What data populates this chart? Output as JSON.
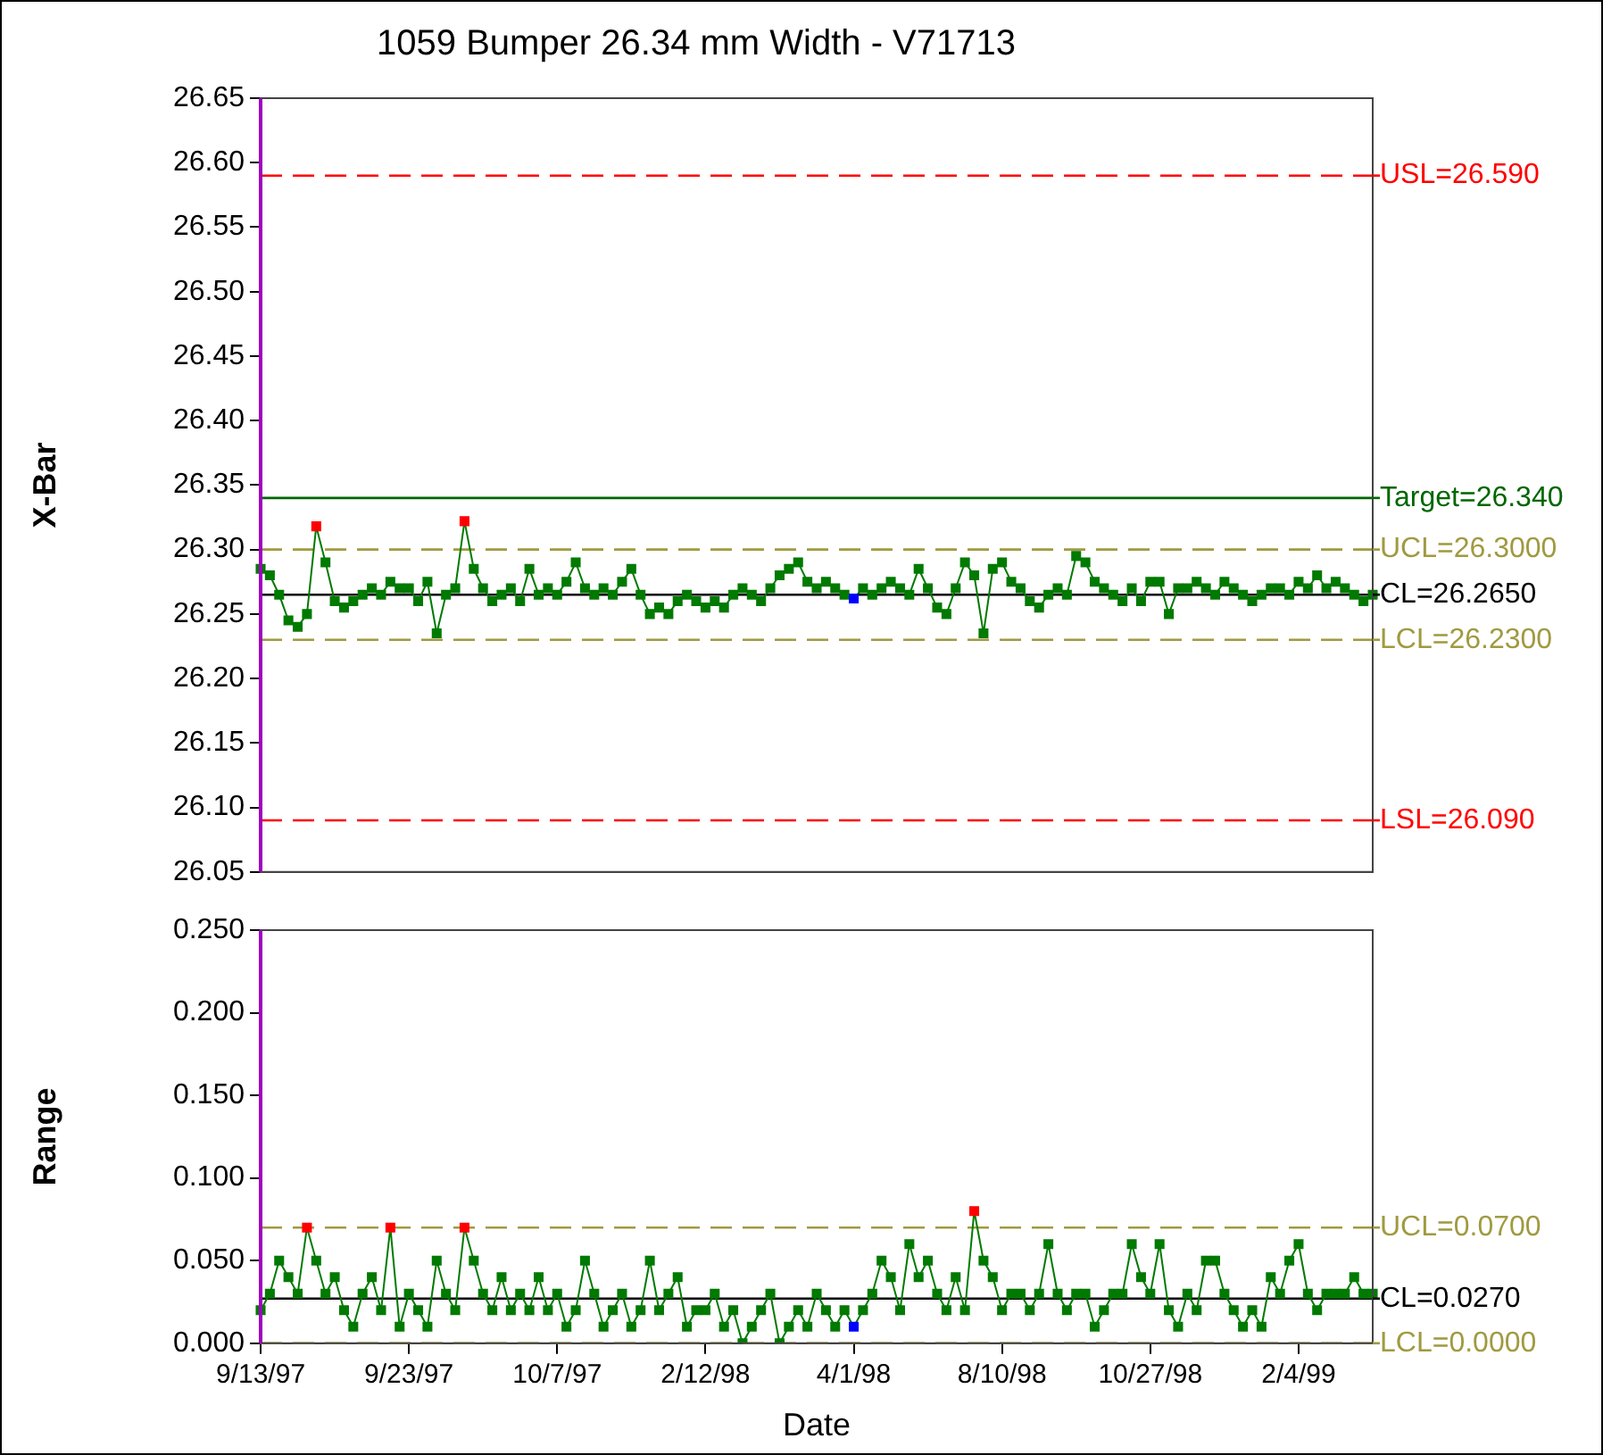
{
  "chart_data": [
    {
      "type": "line",
      "title": "1059 Bumper 26.34 mm Width - V71713",
      "ylabel": "X-Bar",
      "marker": "square",
      "grid": false,
      "legend": false,
      "tick_labels": "y",
      "categories": [
        null,
        null,
        null,
        null,
        null,
        null,
        null,
        null,
        null,
        null,
        null,
        null,
        null,
        null,
        null,
        null,
        null,
        null,
        null,
        null,
        null,
        null,
        null,
        null,
        null,
        null,
        null,
        null,
        null,
        null,
        null,
        null,
        null,
        null,
        null,
        null,
        null,
        null,
        null,
        null,
        null,
        null,
        null,
        null,
        null,
        null,
        null,
        null,
        null,
        null,
        null,
        null,
        null,
        null,
        null,
        null,
        null,
        null,
        null,
        null,
        null,
        null,
        null,
        null,
        null,
        null,
        null,
        null,
        null,
        null,
        null,
        null,
        null,
        null,
        null,
        null,
        null,
        null,
        null,
        null,
        null,
        null,
        null,
        null,
        null,
        null,
        null,
        null,
        null,
        null,
        null,
        null,
        null,
        null,
        null,
        null,
        null,
        null,
        null,
        null,
        null,
        null,
        null,
        null,
        null,
        null,
        null,
        null,
        null,
        null,
        null,
        null,
        null,
        null,
        null,
        null,
        null,
        null,
        null,
        null,
        null
      ],
      "ylim": [
        26.05,
        26.65
      ],
      "yticks": [
        26.05,
        {
          "value": 26.1,
          "label": "26.10"
        },
        26.15,
        {
          "value": 26.2,
          "label": "26.20"
        },
        26.25,
        {
          "value": 26.3,
          "label": "26.30"
        },
        26.35,
        {
          "value": 26.4,
          "label": "26.40"
        },
        26.45,
        {
          "value": 26.5,
          "label": "26.50"
        },
        26.55,
        {
          "value": 26.6,
          "label": "26.60"
        },
        26.65
      ],
      "series": [
        {
          "color": "#007a00",
          "values": [
            26.285,
            26.28,
            26.265,
            26.245,
            26.24,
            26.25,
            26.318,
            26.29,
            26.26,
            26.255,
            26.26,
            26.265,
            26.27,
            26.265,
            26.275,
            26.27,
            26.27,
            26.26,
            26.275,
            26.235,
            26.265,
            26.27,
            26.322,
            26.285,
            26.27,
            26.26,
            26.265,
            26.27,
            26.26,
            26.285,
            26.265,
            26.27,
            26.265,
            26.275,
            26.29,
            26.27,
            26.265,
            26.27,
            26.265,
            26.275,
            26.285,
            26.265,
            26.25,
            26.255,
            26.25,
            26.26,
            26.265,
            26.26,
            26.255,
            26.26,
            26.255,
            26.265,
            26.27,
            26.265,
            26.26,
            26.27,
            26.28,
            26.285,
            26.29,
            26.275,
            26.27,
            26.275,
            26.27,
            26.265,
            26.262,
            26.27,
            26.265,
            26.27,
            26.275,
            26.27,
            26.265,
            26.285,
            26.27,
            26.255,
            26.25,
            26.27,
            26.29,
            26.28,
            26.235,
            26.285,
            26.29,
            26.275,
            26.27,
            26.26,
            26.255,
            26.265,
            26.27,
            26.265,
            26.295,
            26.29,
            26.275,
            26.27,
            26.265,
            26.26,
            26.27,
            26.26,
            26.275,
            26.275,
            26.25,
            26.27,
            26.27,
            26.275,
            26.27,
            26.265,
            26.275,
            26.27,
            26.265,
            26.26,
            26.265,
            26.27,
            26.27,
            26.265,
            26.275,
            26.27,
            26.28,
            26.27,
            26.275,
            26.27,
            26.265,
            26.26,
            26.265
          ],
          "colors": [
            "#007a00",
            "#007a00",
            "#007a00",
            "#007a00",
            "#007a00",
            "#007a00",
            "#ff0000",
            "#007a00",
            "#007a00",
            "#007a00",
            "#007a00",
            "#007a00",
            "#007a00",
            "#007a00",
            "#007a00",
            "#007a00",
            "#007a00",
            "#007a00",
            "#007a00",
            "#007a00",
            "#007a00",
            "#007a00",
            "#ff0000",
            "#007a00",
            "#007a00",
            "#007a00",
            "#007a00",
            "#007a00",
            "#007a00",
            "#007a00",
            "#007a00",
            "#007a00",
            "#007a00",
            "#007a00",
            "#007a00",
            "#007a00",
            "#007a00",
            "#007a00",
            "#007a00",
            "#007a00",
            "#007a00",
            "#007a00",
            "#007a00",
            "#007a00",
            "#007a00",
            "#007a00",
            "#007a00",
            "#007a00",
            "#007a00",
            "#007a00",
            "#007a00",
            "#007a00",
            "#007a00",
            "#007a00",
            "#007a00",
            "#007a00",
            "#007a00",
            "#007a00",
            "#007a00",
            "#007a00",
            "#007a00",
            "#007a00",
            "#007a00",
            "#007a00",
            "#0000ff",
            "#007a00",
            "#007a00",
            "#007a00",
            "#007a00",
            "#007a00",
            "#007a00",
            "#007a00",
            "#007a00",
            "#007a00",
            "#007a00",
            "#007a00",
            "#007a00",
            "#007a00",
            "#007a00",
            "#007a00",
            "#007a00",
            "#007a00",
            "#007a00",
            "#007a00",
            "#007a00",
            "#007a00",
            "#007a00",
            "#007a00",
            "#007a00",
            "#007a00",
            "#007a00",
            "#007a00",
            "#007a00",
            "#007a00",
            "#007a00",
            "#007a00",
            "#007a00",
            "#007a00",
            "#007a00",
            "#007a00",
            "#007a00",
            "#007a00",
            "#007a00",
            "#007a00",
            "#007a00",
            "#007a00",
            "#007a00",
            "#007a00",
            "#007a00",
            "#007a00",
            "#007a00",
            "#007a00",
            "#007a00",
            "#007a00",
            "#007a00",
            "#007a00",
            "#007a00",
            "#007a00",
            "#007a00",
            "#007a00",
            "#007a00"
          ]
        }
      ],
      "ref_lines": [
        {
          "axis": "y",
          "value": 26.59,
          "label": "USL=26.590",
          "color": "#ff0000",
          "line_style": "dashed"
        },
        {
          "axis": "y",
          "value": 26.34,
          "label": "Target=26.340",
          "color": "#006600",
          "line_style": "solid"
        },
        {
          "axis": "y",
          "value": 26.3,
          "label": "UCL=26.3000",
          "color": "#a09a40",
          "line_style": "dashed"
        },
        {
          "axis": "y",
          "value": 26.265,
          "label": "CL=26.2650",
          "color": "#000000",
          "line_style": "solid"
        },
        {
          "axis": "y",
          "value": 26.23,
          "label": "LCL=26.2300",
          "color": "#a09a40",
          "line_style": "dashed"
        },
        {
          "axis": "y",
          "value": 26.09,
          "label": "LSL=26.090",
          "color": "#ff0000",
          "line_style": "dashed"
        }
      ]
    },
    {
      "type": "line",
      "ylabel": "Range",
      "xlabel": "Date",
      "marker": "square",
      "grid": false,
      "legend": false,
      "categories": [
        "9/13/97",
        null,
        null,
        null,
        null,
        null,
        null,
        null,
        null,
        null,
        null,
        null,
        null,
        null,
        null,
        null,
        "9/23/97",
        null,
        null,
        null,
        null,
        null,
        null,
        null,
        null,
        null,
        null,
        null,
        null,
        null,
        null,
        null,
        "10/7/97",
        null,
        null,
        null,
        null,
        null,
        null,
        null,
        null,
        null,
        null,
        null,
        null,
        null,
        null,
        null,
        "2/12/98",
        null,
        null,
        null,
        null,
        null,
        null,
        null,
        null,
        null,
        null,
        null,
        null,
        null,
        null,
        null,
        "4/1/98",
        null,
        null,
        null,
        null,
        null,
        null,
        null,
        null,
        null,
        null,
        null,
        null,
        null,
        null,
        null,
        "8/10/98",
        null,
        null,
        null,
        null,
        null,
        null,
        null,
        null,
        null,
        null,
        null,
        null,
        null,
        null,
        null,
        "10/27/98",
        null,
        null,
        null,
        null,
        null,
        null,
        null,
        null,
        null,
        null,
        null,
        null,
        null,
        null,
        null,
        "2/4/99",
        null,
        null,
        null,
        null,
        null,
        null,
        null,
        null
      ],
      "ylim": [
        0,
        0.25
      ],
      "yticks": [
        {
          "value": 0,
          "label": "0.000"
        },
        {
          "value": 0.05,
          "label": "0.050"
        },
        {
          "value": 0.1,
          "label": "0.100"
        },
        {
          "value": 0.15,
          "label": "0.150"
        },
        {
          "value": 0.2,
          "label": "0.200"
        },
        {
          "value": 0.25,
          "label": "0.250"
        }
      ],
      "series": [
        {
          "color": "#007a00",
          "values": [
            0.02,
            0.03,
            0.05,
            0.04,
            0.03,
            0.07,
            0.05,
            0.03,
            0.04,
            0.02,
            0.01,
            0.03,
            0.04,
            0.02,
            0.07,
            0.01,
            0.03,
            0.02,
            0.01,
            0.05,
            0.03,
            0.02,
            0.07,
            0.05,
            0.03,
            0.02,
            0.04,
            0.02,
            0.03,
            0.02,
            0.04,
            0.02,
            0.03,
            0.01,
            0.02,
            0.05,
            0.03,
            0.01,
            0.02,
            0.03,
            0.01,
            0.02,
            0.05,
            0.02,
            0.03,
            0.04,
            0.01,
            0.02,
            0.02,
            0.03,
            0.01,
            0.02,
            0,
            0.01,
            0.02,
            0.03,
            0,
            0.01,
            0.02,
            0.01,
            0.03,
            0.02,
            0.01,
            0.02,
            0.01,
            0.02,
            0.03,
            0.05,
            0.04,
            0.02,
            0.06,
            0.04,
            0.05,
            0.03,
            0.02,
            0.04,
            0.02,
            0.08,
            0.05,
            0.04,
            0.02,
            0.03,
            0.03,
            0.02,
            0.03,
            0.06,
            0.03,
            0.02,
            0.03,
            0.03,
            0.01,
            0.02,
            0.03,
            0.03,
            0.06,
            0.04,
            0.03,
            0.06,
            0.02,
            0.01,
            0.03,
            0.02,
            0.05,
            0.05,
            0.03,
            0.02,
            0.01,
            0.02,
            0.01,
            0.04,
            0.03,
            0.05,
            0.06,
            0.03,
            0.02,
            0.03,
            0.03,
            0.03,
            0.04,
            0.03,
            0.03
          ],
          "colors": [
            "#007a00",
            "#007a00",
            "#007a00",
            "#007a00",
            "#007a00",
            "#ff0000",
            "#007a00",
            "#007a00",
            "#007a00",
            "#007a00",
            "#007a00",
            "#007a00",
            "#007a00",
            "#007a00",
            "#ff0000",
            "#007a00",
            "#007a00",
            "#007a00",
            "#007a00",
            "#007a00",
            "#007a00",
            "#007a00",
            "#ff0000",
            "#007a00",
            "#007a00",
            "#007a00",
            "#007a00",
            "#007a00",
            "#007a00",
            "#007a00",
            "#007a00",
            "#007a00",
            "#007a00",
            "#007a00",
            "#007a00",
            "#007a00",
            "#007a00",
            "#007a00",
            "#007a00",
            "#007a00",
            "#007a00",
            "#007a00",
            "#007a00",
            "#007a00",
            "#007a00",
            "#007a00",
            "#007a00",
            "#007a00",
            "#007a00",
            "#007a00",
            "#007a00",
            "#007a00",
            "#007a00",
            "#007a00",
            "#007a00",
            "#007a00",
            "#007a00",
            "#007a00",
            "#007a00",
            "#007a00",
            "#007a00",
            "#007a00",
            "#007a00",
            "#007a00",
            "#0000ff",
            "#007a00",
            "#007a00",
            "#007a00",
            "#007a00",
            "#007a00",
            "#007a00",
            "#007a00",
            "#007a00",
            "#007a00",
            "#007a00",
            "#007a00",
            "#007a00",
            "#ff0000",
            "#007a00",
            "#007a00",
            "#007a00",
            "#007a00",
            "#007a00",
            "#007a00",
            "#007a00",
            "#007a00",
            "#007a00",
            "#007a00",
            "#007a00",
            "#007a00",
            "#007a00",
            "#007a00",
            "#007a00",
            "#007a00",
            "#007a00",
            "#007a00",
            "#007a00",
            "#007a00",
            "#007a00",
            "#007a00",
            "#007a00",
            "#007a00",
            "#007a00",
            "#007a00",
            "#007a00",
            "#007a00",
            "#007a00",
            "#007a00",
            "#007a00",
            "#007a00",
            "#007a00",
            "#007a00",
            "#007a00",
            "#007a00",
            "#007a00",
            "#007a00",
            "#007a00",
            "#007a00",
            "#007a00",
            "#007a00",
            "#007a00"
          ]
        }
      ],
      "ref_lines": [
        {
          "axis": "y",
          "value": 0.07,
          "label": "UCL=0.0700",
          "color": "#a09a40",
          "line_style": "dashed"
        },
        {
          "axis": "y",
          "value": 0.027,
          "label": "CL=0.0270",
          "color": "#000000",
          "line_style": "solid"
        },
        {
          "axis": "y",
          "value": 0,
          "label": "LCL=0.0000",
          "color": "#a09a40",
          "line_style": "dashed"
        }
      ]
    }
  ]
}
